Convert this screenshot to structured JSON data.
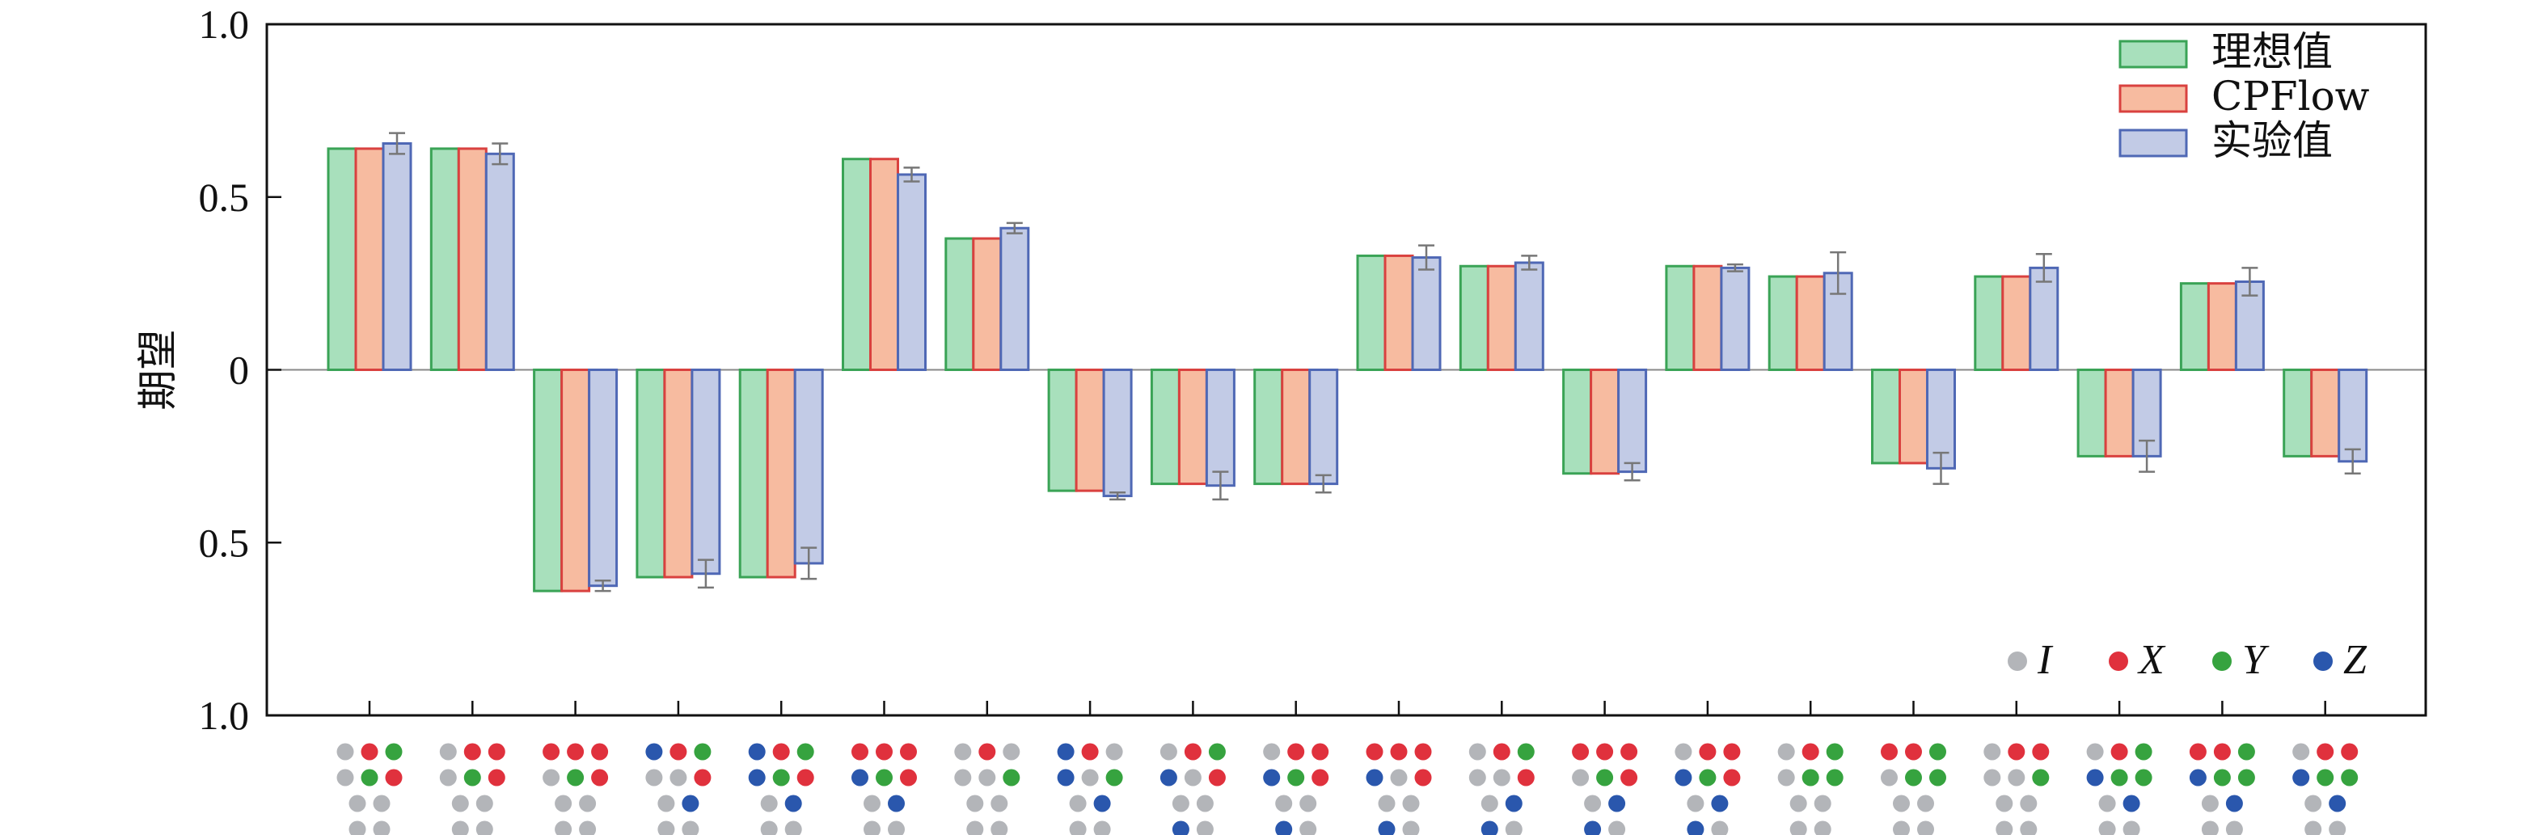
{
  "chart_data": {
    "type": "bar",
    "ylabel": "期望",
    "ylim": [
      -1.0,
      1.0
    ],
    "yticks": [
      1.0,
      0.5,
      0,
      -0.5,
      -1.0
    ],
    "ytick_labels": [
      "1.0",
      "0.5",
      "0",
      "0.5",
      "1.0"
    ],
    "grid": false,
    "legend_position": "top-right",
    "series": [
      {
        "name": "理想值",
        "color": "#a8e0bc",
        "edge": "#3aa356",
        "values": [
          0.64,
          0.64,
          -0.64,
          -0.6,
          -0.6,
          0.61,
          0.38,
          -0.35,
          -0.33,
          -0.33,
          0.33,
          0.3,
          -0.3,
          0.3,
          0.27,
          -0.27,
          0.27,
          -0.25,
          0.25,
          -0.25
        ]
      },
      {
        "name": "CPFlow",
        "color": "#f7bba0",
        "edge": "#d9413f",
        "values": [
          0.64,
          0.64,
          -0.64,
          -0.6,
          -0.6,
          0.61,
          0.38,
          -0.35,
          -0.33,
          -0.33,
          0.33,
          0.3,
          -0.3,
          0.3,
          0.27,
          -0.27,
          0.27,
          -0.25,
          0.25,
          -0.25
        ]
      },
      {
        "name": "实验值",
        "color": "#c2cbe6",
        "edge": "#4f68b5",
        "values": [
          0.655,
          0.625,
          -0.625,
          -0.59,
          -0.56,
          0.565,
          0.41,
          -0.365,
          -0.335,
          -0.33,
          0.325,
          0.31,
          -0.295,
          0.295,
          0.28,
          -0.285,
          0.295,
          -0.25,
          0.255,
          -0.265
        ],
        "errors": [
          0.03,
          0.03,
          0.015,
          0.04,
          0.045,
          0.02,
          0.015,
          0.01,
          0.04,
          0.025,
          0.035,
          0.02,
          0.025,
          0.01,
          0.06,
          0.045,
          0.04,
          0.045,
          0.04,
          0.035
        ]
      }
    ],
    "pauli_legend": [
      {
        "symbol": "I",
        "color": "#b3b5b9"
      },
      {
        "symbol": "X",
        "color": "#e0313d"
      },
      {
        "symbol": "Y",
        "color": "#36a33f"
      },
      {
        "symbol": "Z",
        "color": "#2a57ad"
      }
    ],
    "categories": [
      "IXY|IYX|II|II",
      "IXX|IYX|II|II",
      "XXX|IYX|II|II",
      "ZXY|IIX|IZ|II",
      "ZXY|ZYX|IZ|II",
      "XXX|ZYX|IZ|II",
      "IXI|IIY|II|II",
      "ZXI|ZIY|IZ|II",
      "IXY|ZIX|II|ZI",
      "IXX|ZYX|II|ZI",
      "XXX|ZIX|II|ZI",
      "IXY|IIX|IZ|ZI",
      "XXX|IYX|IZ|ZI",
      "IXX|ZYX|IZ|ZI",
      "IXY|IYY|II|II",
      "XXY|IYY|II|II",
      "IXX|IIY|II|II",
      "IXY|ZYY|IZ|II",
      "XXY|ZYY|IZ|II",
      "IXX|ZYY|IZ|II"
    ]
  }
}
